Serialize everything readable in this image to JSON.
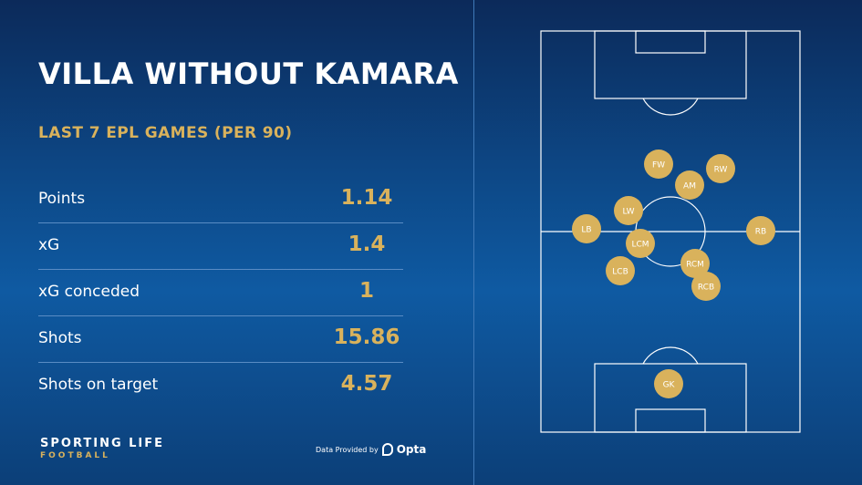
{
  "title": "VILLA WITHOUT KAMARA",
  "subtitle": "LAST 7 EPL GAMES (PER 90)",
  "stats": [
    {
      "label": "Points",
      "value": "1.14"
    },
    {
      "label": "xG",
      "value": "1.4"
    },
    {
      "label": "xG conceded",
      "value": "1"
    },
    {
      "label": "Shots",
      "value": "15.86"
    },
    {
      "label": "Shots on target",
      "value": "4.57"
    }
  ],
  "brand": {
    "main": "SPORTING LIFE",
    "sub": "FOOTBALL"
  },
  "credit": {
    "prefix": "Data Provided by",
    "provider": "Opta"
  },
  "players": [
    "FW",
    "RW",
    "AM",
    "LW",
    "LB",
    "RB",
    "LCM",
    "RCM",
    "LCB",
    "RCB",
    "GK"
  ],
  "colors": {
    "accent": "#d9b25c",
    "text": "#ffffff",
    "pitch_line": "#ffffff"
  }
}
